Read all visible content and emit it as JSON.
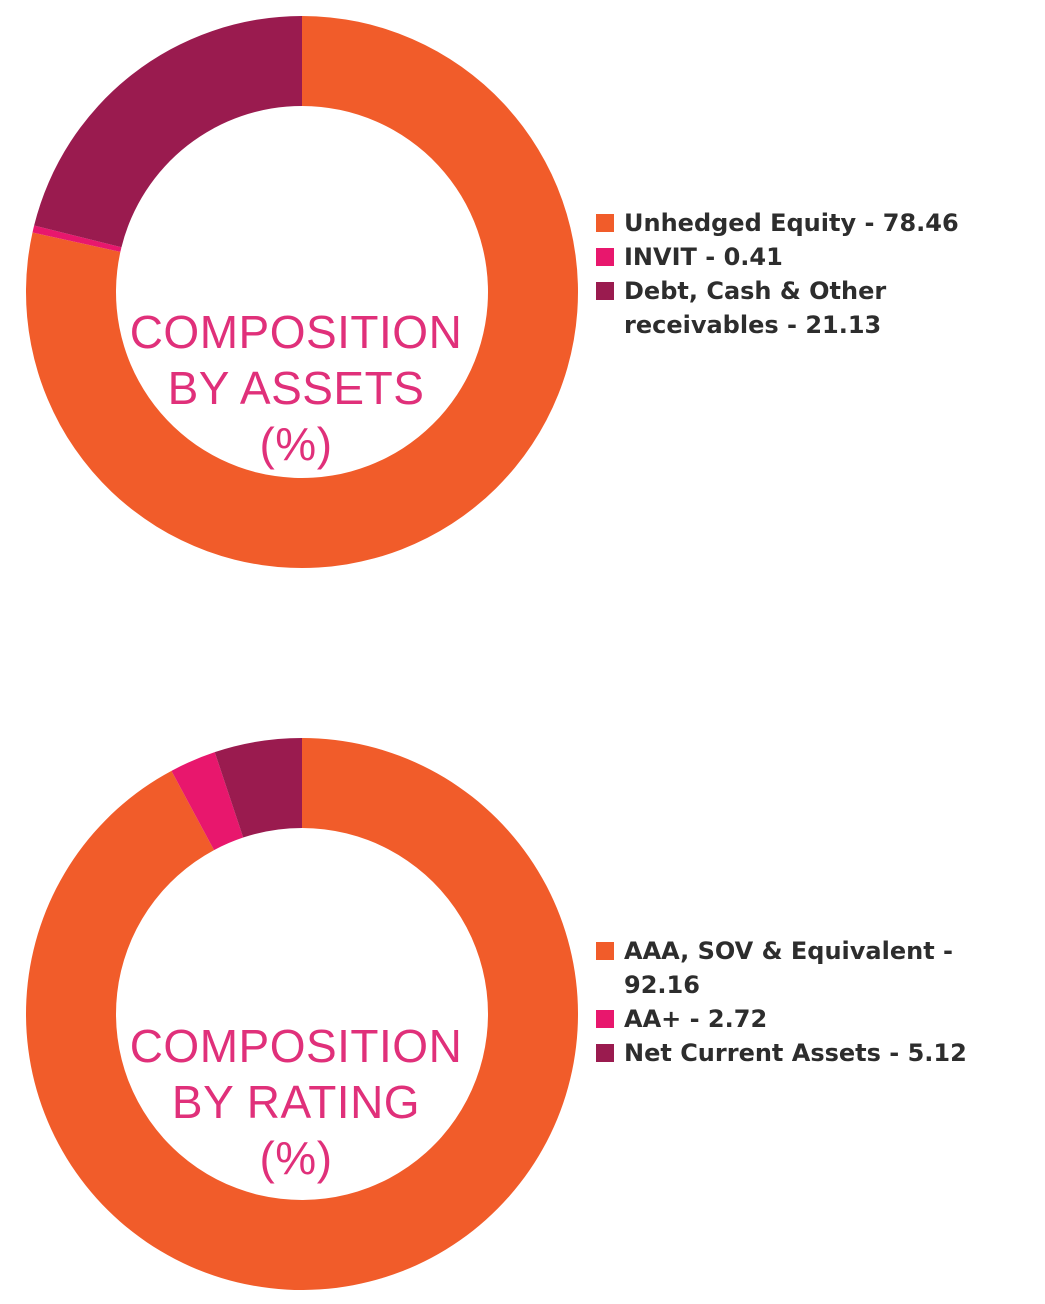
{
  "palette": {
    "orange": "#f15c2a",
    "pink": "#e8176d",
    "maroon": "#9a1b4f",
    "center_text": "#e0307a",
    "legend_text": "#2d2d2d"
  },
  "chart_data": [
    {
      "type": "pie",
      "donut": true,
      "center_label": [
        "COMPOSITION",
        "BY ASSETS",
        "(%)"
      ],
      "slices": [
        {
          "label": "Unhedged Equity - 78.46",
          "value": 78.46,
          "color": "#f15c2a"
        },
        {
          "label": "INVIT - 0.41",
          "value": 0.41,
          "color": "#e8176d"
        },
        {
          "label": "Debt, Cash & Other receivables - 21.13",
          "value": 21.13,
          "color": "#9a1b4f"
        }
      ]
    },
    {
      "type": "pie",
      "donut": true,
      "center_label": [
        "COMPOSITION",
        "BY RATING",
        "(%)"
      ],
      "slices": [
        {
          "label": "AAA, SOV & Equivalent - 92.16",
          "value": 92.16,
          "color": "#f15c2a"
        },
        {
          "label": "AA+ - 2.72",
          "value": 2.72,
          "color": "#e8176d"
        },
        {
          "label": "Net Current Assets - 5.12",
          "value": 5.12,
          "color": "#9a1b4f"
        }
      ]
    }
  ]
}
